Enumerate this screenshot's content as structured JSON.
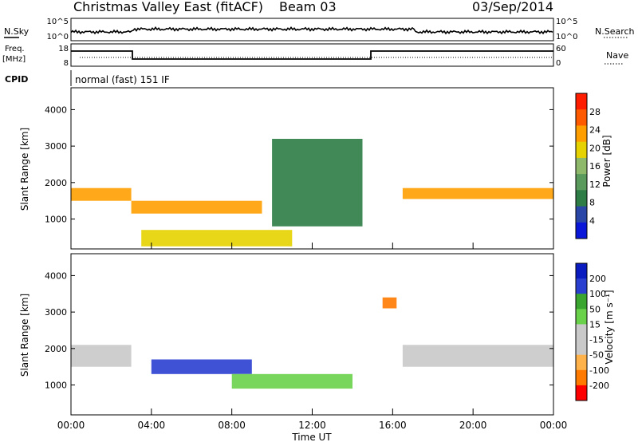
{
  "header": {
    "title": "Christmas Valley East (fitACF)",
    "beam": "Beam 03",
    "date": "03/Sep/2014"
  },
  "top_panels": {
    "nsky_label": "N.Sky",
    "nsky_ticks": [
      "10^5",
      "10^0"
    ],
    "nsearch_label": "N.Search",
    "nsearch_ticks": [
      "10^5",
      "10^0"
    ],
    "freq_label_line1": "Freq.",
    "freq_label_line2": "[MHz]",
    "freq_ticks": [
      "18",
      "8"
    ],
    "nave_label": "Nave",
    "nave_ticks": [
      "60",
      "0"
    ],
    "cpid_label": "CPID",
    "cpid_text": "normal (fast) 151 IF"
  },
  "colors": {
    "power": [
      "#0a17d8",
      "#2a47a8",
      "#2e7c46",
      "#5a9a5c",
      "#8fb96a",
      "#e6d200",
      "#ff9e00",
      "#ff5a00",
      "#ff1d00"
    ],
    "velocity": [
      "#ff0000",
      "#ff7a00",
      "#ffb24a",
      "#c9c9c9",
      "#c9c9c9",
      "#6ad14a",
      "#3aa62f",
      "#2a3fd0",
      "#0a1cc0"
    ]
  },
  "chart_data": [
    {
      "type": "heatmap",
      "panel": "power",
      "ylabel": "Slant Range [km]",
      "yticks": [
        1000,
        2000,
        3000,
        4000
      ],
      "ylim": [
        180,
        4600
      ],
      "xticks": [
        "00:00",
        "04:00",
        "08:00",
        "12:00",
        "16:00",
        "20:00",
        "00:00"
      ],
      "xlim_hours": [
        0,
        24
      ],
      "colorbar_label": "Power [dB]",
      "colorbar_ticks": [
        "4",
        "8",
        "12",
        "16",
        "20",
        "24",
        "28"
      ],
      "features": [
        {
          "name": "main band",
          "t_start": 0,
          "t_end": 3,
          "range_km": [
            1500,
            1850
          ],
          "value_db": 22
        },
        {
          "name": "main band",
          "t_start": 3,
          "t_end": 9.5,
          "range_km": [
            1150,
            1500
          ],
          "value_db": 24
        },
        {
          "name": "low arc",
          "t_start": 3.5,
          "t_end": 11,
          "range_km": [
            250,
            700
          ],
          "value_db": 20
        },
        {
          "name": "midday arc",
          "t_start": 10,
          "t_end": 14.5,
          "range_km": [
            800,
            3200
          ],
          "value_db": 10
        },
        {
          "name": "main band",
          "t_start": 16.5,
          "t_end": 24,
          "range_km": [
            1550,
            1850
          ],
          "value_db": 24
        }
      ]
    },
    {
      "type": "heatmap",
      "panel": "velocity",
      "ylabel": "Slant Range [km]",
      "yticks": [
        1000,
        2000,
        3000,
        4000
      ],
      "ylim": [
        180,
        4600
      ],
      "xticks": [
        "00:00",
        "04:00",
        "08:00",
        "12:00",
        "16:00",
        "20:00",
        "00:00"
      ],
      "xlim_hours": [
        0,
        24
      ],
      "xlabel": "Time UT",
      "colorbar_label": "Velocity [m s⁻¹]",
      "colorbar_ticks": [
        "200",
        "100",
        "50",
        "15",
        "-15",
        "-50",
        "-100",
        "-200"
      ],
      "features": [
        {
          "name": "ground scatter",
          "t_start": 0,
          "t_end": 3,
          "range_km": [
            1500,
            2100
          ],
          "value_ms": 0
        },
        {
          "name": "blue arc",
          "t_start": 4,
          "t_end": 9,
          "range_km": [
            1300,
            1700
          ],
          "value_ms": 150
        },
        {
          "name": "green arc",
          "t_start": 8,
          "t_end": 14,
          "range_km": [
            900,
            1300
          ],
          "value_ms": 50
        },
        {
          "name": "red patch",
          "t_start": 15.5,
          "t_end": 16.2,
          "range_km": [
            3100,
            3400
          ],
          "value_ms": -180
        },
        {
          "name": "ground scatter",
          "t_start": 16.5,
          "t_end": 24,
          "range_km": [
            1500,
            2100
          ],
          "value_ms": 0
        }
      ]
    }
  ]
}
